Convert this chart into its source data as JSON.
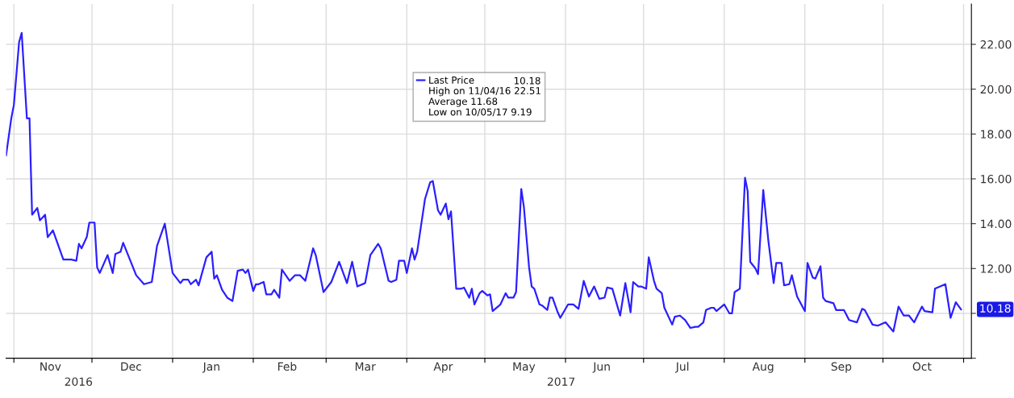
{
  "chart_data": {
    "type": "line",
    "x": [
      "2016-10-29",
      "2016-10-31",
      "2016-11-01",
      "2016-11-03",
      "2016-11-04",
      "2016-11-06",
      "2016-11-07",
      "2016-11-08",
      "2016-11-10",
      "2016-11-11",
      "2016-11-13",
      "2016-11-14",
      "2016-11-16",
      "2016-11-20",
      "2016-11-23",
      "2016-11-25",
      "2016-11-26",
      "2016-11-27",
      "2016-11-29",
      "2016-11-30",
      "2016-12-02",
      "2016-12-03",
      "2016-12-04",
      "2016-12-07",
      "2016-12-09",
      "2016-12-10",
      "2016-12-12",
      "2016-12-13",
      "2016-12-18",
      "2016-12-21",
      "2016-12-24",
      "2016-12-26",
      "2016-12-29",
      "2017-01-01",
      "2017-01-04",
      "2017-01-05",
      "2017-01-07",
      "2017-01-08",
      "2017-01-10",
      "2017-01-11",
      "2017-01-14",
      "2017-01-16",
      "2017-01-17",
      "2017-01-18",
      "2017-01-20",
      "2017-01-22",
      "2017-01-24",
      "2017-01-26",
      "2017-01-28",
      "2017-01-29",
      "2017-01-30",
      "2017-02-01",
      "2017-02-02",
      "2017-02-03",
      "2017-02-05",
      "2017-02-06",
      "2017-02-08",
      "2017-02-09",
      "2017-02-11",
      "2017-02-12",
      "2017-02-15",
      "2017-02-17",
      "2017-02-19",
      "2017-02-21",
      "2017-02-24",
      "2017-02-25",
      "2017-02-28",
      "2017-03-03",
      "2017-03-06",
      "2017-03-09",
      "2017-03-11",
      "2017-03-13",
      "2017-03-16",
      "2017-03-18",
      "2017-03-21",
      "2017-03-22",
      "2017-03-25",
      "2017-03-26",
      "2017-03-28",
      "2017-03-29",
      "2017-03-31",
      "2017-04-01",
      "2017-04-03",
      "2017-04-04",
      "2017-04-05",
      "2017-04-08",
      "2017-04-10",
      "2017-04-11",
      "2017-04-13",
      "2017-04-14",
      "2017-04-16",
      "2017-04-17",
      "2017-04-18",
      "2017-04-20",
      "2017-04-22",
      "2017-04-23",
      "2017-04-25",
      "2017-04-26",
      "2017-04-27",
      "2017-04-29",
      "2017-04-30",
      "2017-05-02",
      "2017-05-03",
      "2017-05-04",
      "2017-05-07",
      "2017-05-09",
      "2017-05-10",
      "2017-05-12",
      "2017-05-13",
      "2017-05-15",
      "2017-05-16",
      "2017-05-18",
      "2017-05-19",
      "2017-05-20",
      "2017-05-22",
      "2017-05-23",
      "2017-05-25",
      "2017-05-26",
      "2017-05-27",
      "2017-05-29",
      "2017-05-30",
      "2017-06-02",
      "2017-06-04",
      "2017-06-06",
      "2017-06-08",
      "2017-06-10",
      "2017-06-12",
      "2017-06-14",
      "2017-06-16",
      "2017-06-17",
      "2017-06-19",
      "2017-06-22",
      "2017-06-24",
      "2017-06-26",
      "2017-06-27",
      "2017-06-29",
      "2017-06-30",
      "2017-07-02",
      "2017-07-03",
      "2017-07-05",
      "2017-07-06",
      "2017-07-08",
      "2017-07-09",
      "2017-07-12",
      "2017-07-13",
      "2017-07-15",
      "2017-07-17",
      "2017-07-19",
      "2017-07-21",
      "2017-07-22",
      "2017-07-24",
      "2017-07-25",
      "2017-07-27",
      "2017-07-28",
      "2017-07-29",
      "2017-08-01",
      "2017-08-03",
      "2017-08-04",
      "2017-08-05",
      "2017-08-07",
      "2017-08-09",
      "2017-08-10",
      "2017-08-11",
      "2017-08-13",
      "2017-08-14",
      "2017-08-16",
      "2017-08-18",
      "2017-08-20",
      "2017-08-21",
      "2017-08-23",
      "2017-08-24",
      "2017-08-26",
      "2017-08-27",
      "2017-08-29",
      "2017-09-01",
      "2017-09-02",
      "2017-09-04",
      "2017-09-05",
      "2017-09-07",
      "2017-09-08",
      "2017-09-09",
      "2017-09-12",
      "2017-09-13",
      "2017-09-16",
      "2017-09-18",
      "2017-09-21",
      "2017-09-23",
      "2017-09-24",
      "2017-09-27",
      "2017-09-29",
      "2017-10-02",
      "2017-10-05",
      "2017-10-07",
      "2017-10-09",
      "2017-10-11",
      "2017-10-13",
      "2017-10-16",
      "2017-10-17",
      "2017-10-20",
      "2017-10-21",
      "2017-10-25",
      "2017-10-27",
      "2017-10-29",
      "2017-10-31"
    ],
    "series": [
      {
        "name": "Last Price",
        "color": "#2b1fff",
        "values": [
          17.05,
          18.7,
          19.3,
          22.1,
          22.51,
          18.7,
          18.7,
          14.4,
          14.7,
          14.15,
          14.4,
          13.4,
          13.7,
          12.4,
          12.4,
          12.35,
          13.1,
          12.9,
          13.4,
          14.05,
          14.05,
          12.05,
          11.8,
          12.6,
          11.8,
          12.65,
          12.75,
          13.15,
          11.7,
          11.3,
          11.4,
          13.0,
          14.0,
          11.8,
          11.35,
          11.5,
          11.5,
          11.3,
          11.5,
          11.25,
          12.5,
          12.75,
          11.55,
          11.7,
          11.05,
          10.7,
          10.55,
          11.9,
          11.95,
          11.8,
          11.95,
          11.0,
          11.3,
          11.3,
          11.4,
          10.85,
          10.85,
          11.05,
          10.7,
          11.95,
          11.45,
          11.7,
          11.7,
          11.45,
          12.9,
          12.6,
          10.95,
          11.4,
          12.3,
          11.35,
          12.3,
          11.2,
          11.35,
          12.6,
          13.1,
          12.9,
          11.45,
          11.4,
          11.5,
          12.35,
          12.35,
          11.8,
          12.9,
          12.4,
          12.75,
          15.1,
          15.85,
          15.9,
          14.6,
          14.4,
          14.9,
          14.2,
          14.55,
          11.1,
          11.1,
          11.15,
          10.7,
          11.1,
          10.4,
          10.9,
          11.0,
          10.8,
          10.85,
          10.1,
          10.4,
          10.9,
          10.7,
          10.7,
          10.95,
          15.55,
          14.75,
          12.05,
          11.2,
          11.1,
          10.4,
          10.35,
          10.15,
          10.7,
          10.7,
          10.05,
          9.8,
          10.4,
          10.4,
          10.2,
          11.45,
          10.75,
          11.2,
          10.65,
          10.7,
          11.15,
          11.1,
          9.9,
          11.35,
          10.05,
          11.4,
          11.2,
          11.2,
          11.1,
          12.5,
          11.45,
          11.1,
          10.9,
          10.25,
          9.5,
          9.85,
          9.9,
          9.7,
          9.35,
          9.4,
          9.4,
          9.6,
          10.15,
          10.25,
          10.25,
          10.1,
          10.4,
          10.0,
          10.0,
          10.95,
          11.1,
          16.05,
          15.45,
          12.3,
          12.0,
          11.75,
          15.5,
          13.2,
          11.35,
          12.25,
          12.25,
          11.25,
          11.3,
          11.7,
          10.75,
          10.1,
          12.25,
          11.6,
          11.55,
          12.1,
          10.7,
          10.55,
          10.45,
          10.15,
          10.15,
          9.7,
          9.6,
          10.2,
          10.15,
          9.5,
          9.45,
          9.6,
          9.19,
          10.3,
          9.9,
          9.9,
          9.6,
          10.3,
          10.1,
          10.05,
          11.1,
          11.3,
          9.8,
          10.5,
          10.18
        ]
      }
    ],
    "xlim": [
      "2016-10-29",
      "2017-11-04"
    ],
    "xticks": [
      {
        "value": "2016-11-01",
        "label": null
      },
      {
        "value": "2016-11-15",
        "label": "Nov"
      },
      {
        "value": "2016-12-01",
        "label": null
      },
      {
        "value": "2016-12-16",
        "label": "Dec"
      },
      {
        "value": "2017-01-01",
        "label": null
      },
      {
        "value": "2017-01-16",
        "label": "Jan"
      },
      {
        "value": "2017-02-01",
        "label": null
      },
      {
        "value": "2017-02-14",
        "label": "Feb"
      },
      {
        "value": "2017-03-01",
        "label": null
      },
      {
        "value": "2017-03-16",
        "label": "Mar"
      },
      {
        "value": "2017-04-01",
        "label": null
      },
      {
        "value": "2017-04-15",
        "label": "Apr"
      },
      {
        "value": "2017-05-01",
        "label": null
      },
      {
        "value": "2017-05-16",
        "label": "May"
      },
      {
        "value": "2017-06-01",
        "label": null
      },
      {
        "value": "2017-06-15",
        "label": "Jun"
      },
      {
        "value": "2017-07-01",
        "label": null
      },
      {
        "value": "2017-07-16",
        "label": "Jul"
      },
      {
        "value": "2017-08-01",
        "label": null
      },
      {
        "value": "2017-08-16",
        "label": "Aug"
      },
      {
        "value": "2017-09-01",
        "label": null
      },
      {
        "value": "2017-09-15",
        "label": "Sep"
      },
      {
        "value": "2017-10-01",
        "label": null
      },
      {
        "value": "2017-10-16",
        "label": "Oct"
      },
      {
        "value": "2017-11-01",
        "label": null
      }
    ],
    "ylim": [
      8,
      23.8
    ],
    "yticks": [
      {
        "value": 8,
        "label": null
      },
      {
        "value": 10,
        "label": null
      },
      {
        "value": 12,
        "label": "12.00"
      },
      {
        "value": 14,
        "label": "14.00"
      },
      {
        "value": 16,
        "label": "16.00"
      },
      {
        "value": 18,
        "label": "18.00"
      },
      {
        "value": 20,
        "label": "20.00"
      },
      {
        "value": 22,
        "label": "22.00"
      }
    ],
    "grid": true,
    "legend": "top",
    "annotations": [
      {
        "text": "10.18",
        "x": "2017-10-31",
        "y": 10.18
      },
      "10.18",
      "High on 11/04/16 22.51",
      "Average 11.68",
      "Low on 10/05/17 9.19",
      "2016",
      "2017"
    ]
  }
}
